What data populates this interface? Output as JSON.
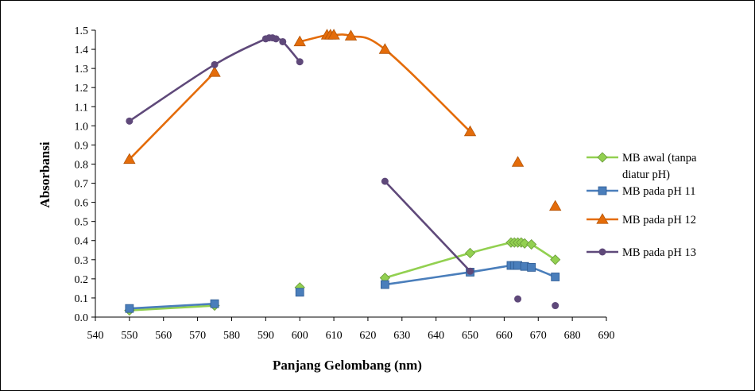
{
  "chart_data": {
    "type": "line",
    "xlabel": "Panjang Gelombang (nm)",
    "ylabel": "Absorbansi",
    "xlim": [
      540,
      690
    ],
    "ylim": [
      0.0,
      1.5
    ],
    "x_ticks": [
      "540",
      "550",
      "560",
      "570",
      "580",
      "590",
      "600",
      "610",
      "620",
      "630",
      "640",
      "650",
      "660",
      "670",
      "680",
      "690"
    ],
    "y_ticks": [
      "0.0",
      "0.1",
      "0.2",
      "0.3",
      "0.4",
      "0.5",
      "0.6",
      "0.7",
      "0.8",
      "0.9",
      "1.0",
      "1.1",
      "1.2",
      "1.3",
      "1.4",
      "1.5"
    ],
    "grid": false,
    "legend_position": "right",
    "series": [
      {
        "name": "MB awal (tanpa diatur pH)",
        "name_lines": [
          "MB awal (tanpa",
          "diatur pH)"
        ],
        "color": "#92d050",
        "marker": "diamond",
        "segments": [
          [
            [
              550,
              0.035
            ],
            [
              575,
              0.06
            ]
          ],
          [
            [
              600,
              0.155
            ]
          ],
          [
            [
              625,
              0.205
            ],
            [
              650,
              0.335
            ],
            [
              662,
              0.39
            ],
            [
              663,
              0.39
            ],
            [
              664,
              0.39
            ],
            [
              665,
              0.39
            ],
            [
              666,
              0.385
            ],
            [
              668,
              0.38
            ],
            [
              675,
              0.3
            ]
          ]
        ]
      },
      {
        "name": "MB pada pH 11",
        "name_lines": [
          "MB pada pH 11"
        ],
        "color": "#4a7ebb",
        "marker": "square",
        "segments": [
          [
            [
              550,
              0.045
            ],
            [
              575,
              0.07
            ]
          ],
          [
            [
              600,
              0.13
            ]
          ],
          [
            [
              625,
              0.17
            ],
            [
              650,
              0.235
            ],
            [
              662,
              0.27
            ],
            [
              663,
              0.27
            ],
            [
              664,
              0.27
            ],
            [
              666,
              0.265
            ],
            [
              668,
              0.26
            ],
            [
              675,
              0.21
            ]
          ]
        ]
      },
      {
        "name": "MB pada pH 12",
        "name_lines": [
          "MB pada pH 12"
        ],
        "color": "#e46c0a",
        "marker": "triangle",
        "segments": [
          [
            [
              550,
              0.825
            ],
            [
              575,
              1.28
            ]
          ],
          [
            [
              600,
              1.44
            ],
            [
              608,
              1.475
            ],
            [
              609,
              1.475
            ],
            [
              610,
              1.475
            ],
            [
              615,
              1.47
            ],
            [
              625,
              1.4
            ],
            [
              650,
              0.97
            ]
          ],
          [
            [
              664,
              0.81
            ]
          ],
          [
            [
              675,
              0.58
            ]
          ]
        ]
      },
      {
        "name": "MB pada pH 13",
        "name_lines": [
          "MB pada pH 13"
        ],
        "color": "#5f497a",
        "marker": "circle",
        "segments": [
          [
            [
              550,
              1.025
            ],
            [
              575,
              1.32
            ],
            [
              590,
              1.455
            ],
            [
              591,
              1.46
            ],
            [
              592,
              1.46
            ],
            [
              593,
              1.455
            ],
            [
              595,
              1.44
            ],
            [
              600,
              1.335
            ]
          ],
          [
            [
              625,
              0.71
            ],
            [
              650,
              0.24
            ]
          ],
          [
            [
              664,
              0.095
            ]
          ],
          [
            [
              675,
              0.06
            ]
          ]
        ]
      }
    ]
  }
}
